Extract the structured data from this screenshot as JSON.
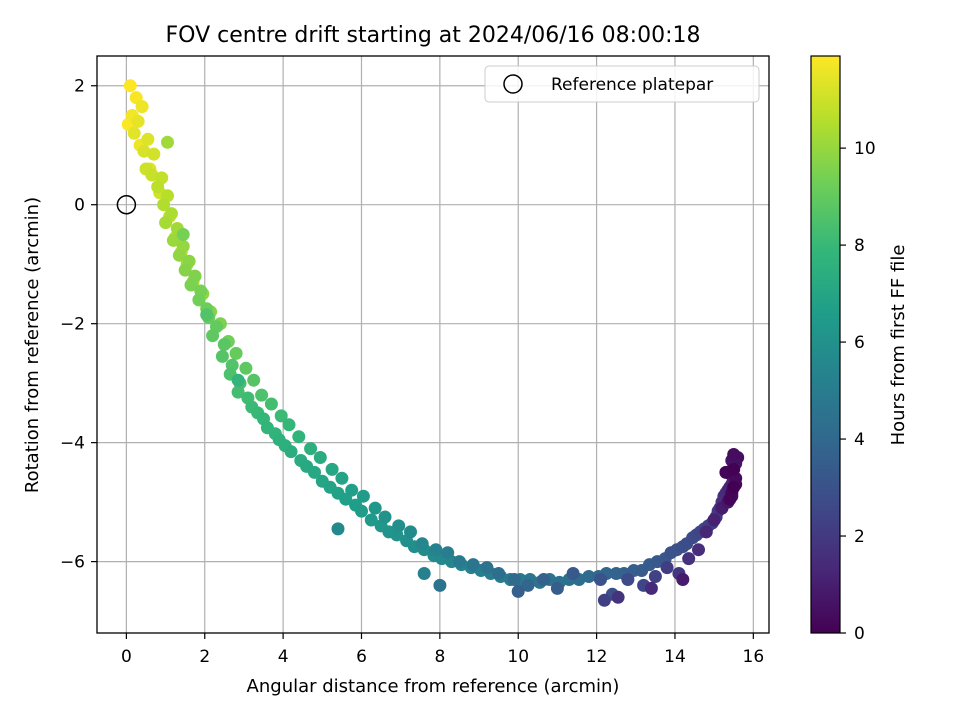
{
  "chart_data": {
    "type": "scatter",
    "title": "FOV centre drift starting at 2024/06/16 08:00:18",
    "xlabel": "Angular distance from reference (arcmin)",
    "ylabel": "Rotation from reference (arcmin)",
    "xlim": [
      -0.75,
      16.4
    ],
    "ylim": [
      -7.2,
      2.5
    ],
    "xticks": [
      0,
      2,
      4,
      6,
      8,
      10,
      12,
      14,
      16
    ],
    "yticks": [
      -6,
      -4,
      -2,
      0,
      2
    ],
    "grid": true,
    "legend": {
      "position": "top-right",
      "entries": [
        {
          "label": "Reference platepar",
          "marker": "open-circle"
        }
      ]
    },
    "reference_point": {
      "label": "Reference platepar",
      "x": 0,
      "y": 0
    },
    "colorbar": {
      "label": "Hours from first FF file",
      "range": [
        0,
        11.9
      ],
      "ticks": [
        0,
        2,
        4,
        6,
        8,
        10
      ],
      "colormap": "viridis",
      "colormap_stops": [
        "#440154",
        "#482878",
        "#3e4a89",
        "#31688e",
        "#26828e",
        "#1f9e89",
        "#35b779",
        "#6ece58",
        "#b5de2b",
        "#fde725"
      ]
    },
    "series": [
      {
        "hours": [
          11.9,
          11.8,
          11.7,
          11.6,
          11.5,
          11.4,
          11.3,
          11.2,
          11.1,
          11.0,
          10.9,
          10.8,
          10.7,
          10.6,
          10.5,
          10.4,
          10.3,
          10.2,
          10.1,
          10.0,
          9.9,
          9.8,
          9.7,
          9.6,
          9.5,
          9.4,
          9.3,
          9.2,
          9.1,
          9.0,
          8.9,
          8.8,
          8.7,
          8.6,
          8.5,
          8.4,
          8.3,
          8.2,
          8.1,
          8.0,
          7.9,
          7.8,
          7.7,
          7.6,
          7.5,
          7.4,
          7.3,
          7.2,
          7.1,
          7.0,
          6.9,
          6.8,
          6.7,
          6.6,
          6.5,
          6.4,
          6.3,
          6.2,
          6.1,
          6.0,
          5.9,
          5.8,
          5.7,
          5.6,
          5.5,
          5.4,
          5.3,
          5.2,
          5.1,
          5.0,
          4.9,
          4.8,
          4.7,
          4.6,
          4.5,
          4.4,
          4.3,
          4.2,
          4.1,
          4.0,
          3.9,
          3.8,
          3.7,
          3.6,
          3.5,
          3.4,
          3.3,
          3.2,
          3.1,
          3.0,
          2.9,
          2.8,
          2.7,
          2.6,
          2.5,
          2.4,
          2.3,
          2.2,
          2.1,
          2.0,
          1.9,
          1.8,
          1.7,
          1.6,
          1.5,
          1.4,
          1.3,
          1.2,
          1.1,
          1.0,
          0.9,
          0.8,
          0.7,
          0.6,
          0.5,
          0.4,
          0.3,
          0.2,
          0.1,
          0.0,
          11.85,
          11.6,
          11.3,
          11.1,
          10.9,
          10.7,
          10.5,
          10.3,
          10.1,
          9.9,
          9.7,
          9.5,
          9.3,
          9.1,
          8.9,
          8.7,
          8.5,
          8.3,
          8.1,
          7.9,
          7.7,
          7.5,
          7.3,
          7.1,
          6.9,
          6.7,
          6.5,
          6.3,
          6.1,
          5.9,
          5.7,
          5.5,
          5.3,
          5.1,
          4.9,
          4.7,
          4.5,
          4.3,
          4.1,
          3.9,
          3.7,
          3.5,
          3.3,
          3.1,
          2.9,
          2.7,
          2.5,
          2.3,
          2.1,
          1.9,
          1.7,
          1.5,
          1.3,
          1.1,
          0.9,
          0.7,
          0.5,
          0.3,
          0.15,
          0.05,
          10.2,
          9.4,
          8.6,
          7.8,
          5.6,
          5.2,
          4.6,
          3.6,
          2.2,
          1.8,
          1.4,
          0.9
        ],
        "x": [
          0.1,
          0.25,
          0.15,
          0.4,
          0.3,
          0.2,
          0.55,
          0.45,
          0.7,
          0.5,
          0.65,
          0.9,
          0.8,
          1.05,
          0.95,
          1.15,
          1.0,
          1.3,
          1.2,
          1.45,
          1.35,
          1.6,
          1.5,
          1.75,
          1.65,
          1.9,
          1.85,
          2.05,
          2.1,
          2.3,
          2.2,
          2.5,
          2.45,
          2.7,
          2.65,
          2.9,
          2.85,
          3.1,
          3.2,
          3.35,
          3.5,
          3.6,
          3.8,
          3.9,
          4.05,
          4.2,
          4.45,
          4.6,
          4.8,
          5.0,
          5.2,
          5.4,
          5.6,
          5.85,
          6.0,
          6.25,
          6.5,
          6.7,
          6.9,
          7.15,
          7.35,
          7.6,
          7.85,
          8.05,
          8.3,
          8.55,
          8.8,
          9.05,
          9.3,
          9.55,
          9.8,
          10.05,
          10.3,
          10.55,
          10.8,
          11.05,
          11.3,
          11.55,
          11.8,
          12.05,
          12.25,
          12.5,
          12.7,
          12.95,
          13.15,
          13.35,
          13.55,
          13.75,
          13.9,
          14.05,
          14.2,
          14.3,
          14.45,
          14.55,
          14.65,
          14.75,
          14.85,
          14.95,
          15.0,
          15.05,
          15.1,
          15.15,
          15.2,
          15.25,
          15.3,
          15.35,
          15.4,
          15.45,
          15.5,
          15.45,
          15.4,
          15.5,
          15.55,
          15.45,
          15.6,
          15.5,
          15.55,
          15.45,
          15.4,
          15.5,
          0.05,
          0.35,
          0.6,
          0.85,
          1.1,
          1.25,
          1.4,
          1.55,
          1.7,
          1.95,
          2.15,
          2.4,
          2.6,
          2.8,
          3.05,
          3.25,
          3.45,
          3.7,
          3.95,
          4.15,
          4.4,
          4.7,
          4.95,
          5.25,
          5.5,
          5.75,
          6.05,
          6.35,
          6.6,
          6.95,
          7.25,
          7.55,
          7.9,
          8.2,
          8.5,
          8.85,
          9.2,
          9.5,
          9.9,
          10.25,
          10.65,
          11.0,
          11.4,
          12.1,
          12.4,
          12.8,
          13.2,
          13.5,
          13.8,
          14.1,
          14.35,
          14.6,
          14.8,
          15.0,
          15.2,
          15.35,
          15.45,
          15.55,
          15.3,
          15.5,
          1.05,
          1.45,
          2.05,
          2.85,
          5.4,
          7.6,
          8.0,
          10.0,
          12.2,
          12.55,
          13.4,
          14.2
        ],
        "y": [
          2.0,
          1.8,
          1.5,
          1.65,
          1.4,
          1.2,
          1.1,
          0.9,
          0.85,
          0.6,
          0.5,
          0.45,
          0.3,
          0.15,
          0.0,
          -0.15,
          -0.3,
          -0.4,
          -0.6,
          -0.7,
          -0.85,
          -0.95,
          -1.1,
          -1.2,
          -1.35,
          -1.45,
          -1.6,
          -1.75,
          -1.9,
          -2.05,
          -2.2,
          -2.35,
          -2.55,
          -2.7,
          -2.85,
          -3.0,
          -3.15,
          -3.25,
          -3.4,
          -3.5,
          -3.6,
          -3.75,
          -3.85,
          -3.95,
          -4.05,
          -4.15,
          -4.3,
          -4.4,
          -4.5,
          -4.65,
          -4.75,
          -4.85,
          -4.95,
          -5.05,
          -5.15,
          -5.3,
          -5.4,
          -5.5,
          -5.55,
          -5.65,
          -5.75,
          -5.8,
          -5.9,
          -5.95,
          -6.0,
          -6.05,
          -6.1,
          -6.15,
          -6.2,
          -6.25,
          -6.3,
          -6.3,
          -6.3,
          -6.35,
          -6.3,
          -6.35,
          -6.3,
          -6.3,
          -6.25,
          -6.25,
          -6.2,
          -6.2,
          -6.2,
          -6.15,
          -6.15,
          -6.05,
          -6.0,
          -5.95,
          -5.85,
          -5.8,
          -5.75,
          -5.7,
          -5.6,
          -5.55,
          -5.5,
          -5.45,
          -5.4,
          -5.35,
          -5.3,
          -5.25,
          -5.15,
          -5.1,
          -5.0,
          -4.9,
          -4.85,
          -4.8,
          -4.75,
          -4.7,
          -4.6,
          -4.55,
          -4.5,
          -4.4,
          -4.35,
          -4.3,
          -4.25,
          -4.2,
          -4.6,
          -4.85,
          -4.95,
          -4.75,
          1.35,
          1.0,
          0.6,
          0.2,
          -0.2,
          -0.55,
          -0.8,
          -1.0,
          -1.3,
          -1.5,
          -1.8,
          -2.0,
          -2.3,
          -2.5,
          -2.75,
          -2.95,
          -3.2,
          -3.35,
          -3.55,
          -3.7,
          -3.9,
          -4.1,
          -4.25,
          -4.45,
          -4.6,
          -4.8,
          -4.9,
          -5.1,
          -5.25,
          -5.4,
          -5.5,
          -5.7,
          -5.8,
          -5.85,
          -6.0,
          -6.05,
          -6.1,
          -6.2,
          -6.3,
          -6.4,
          -6.3,
          -6.45,
          -6.2,
          -6.3,
          -6.55,
          -6.3,
          -6.4,
          -6.25,
          -6.1,
          -6.2,
          -5.95,
          -5.8,
          -5.5,
          -5.3,
          -5.1,
          -5.0,
          -4.9,
          -4.7,
          -4.5,
          -4.45,
          1.05,
          -0.5,
          -1.85,
          -2.95,
          -5.45,
          -6.2,
          -6.4,
          -6.5,
          -6.65,
          -6.6,
          -6.45,
          -6.3
        ]
      }
    ]
  }
}
